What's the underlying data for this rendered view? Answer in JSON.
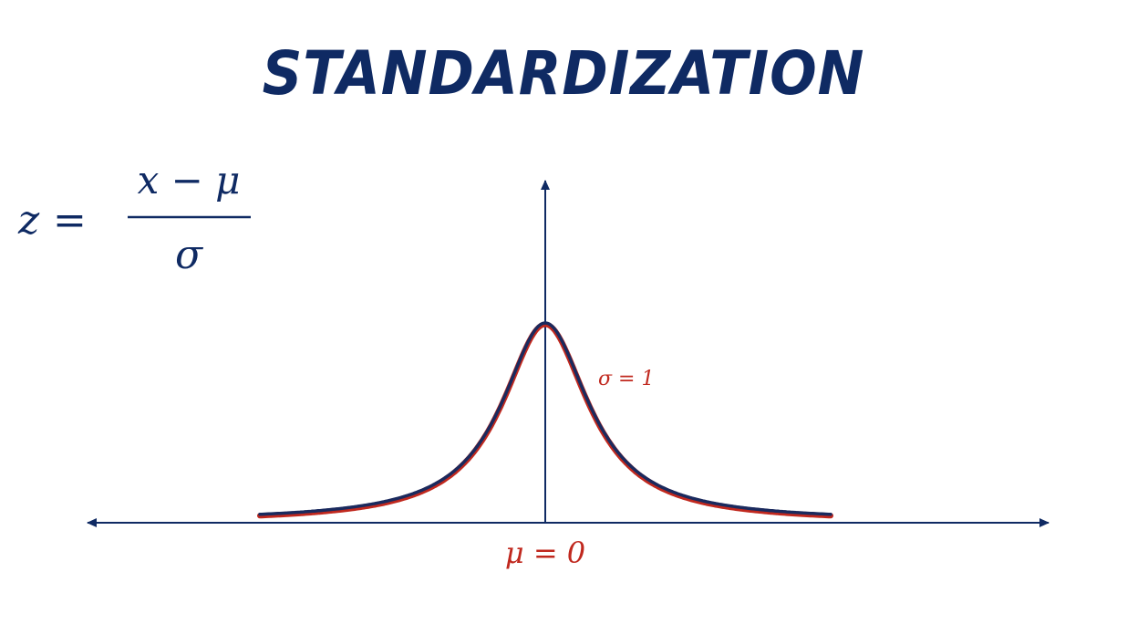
{
  "title": "STANDARDIZATION",
  "formula": {
    "lhs": "z",
    "equals": "=",
    "numerator": "x − μ",
    "denominator": "σ"
  },
  "curve_label": "σ = 1",
  "mean_label": "μ = 0",
  "colors": {
    "navy": "#0f2a63",
    "red": "#c0281e"
  }
}
